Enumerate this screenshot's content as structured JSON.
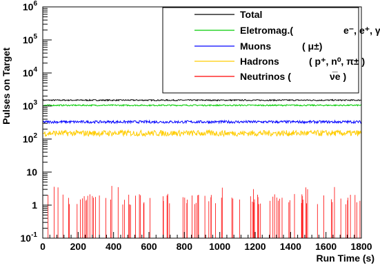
{
  "chart_data": {
    "type": "line",
    "xlabel": "Run Time (s)",
    "ylabel": "Pulses on Target",
    "xlim": [
      0,
      1800
    ],
    "ylim": [
      0.1,
      1000000
    ],
    "yscale": "log",
    "x_ticks": [
      0,
      200,
      400,
      600,
      800,
      1000,
      1200,
      1400,
      1600,
      1800
    ],
    "y_ticks": [
      {
        "value": 0.1,
        "base": "10",
        "exp": "-1"
      },
      {
        "value": 1,
        "base": "1",
        "exp": ""
      },
      {
        "value": 10,
        "base": "10",
        "exp": ""
      },
      {
        "value": 100,
        "base": "10",
        "exp": "2"
      },
      {
        "value": 1000,
        "base": "10",
        "exp": "3"
      },
      {
        "value": 10000,
        "base": "10",
        "exp": "4"
      },
      {
        "value": 100000,
        "base": "10",
        "exp": "5"
      },
      {
        "value": 1000000,
        "base": "10",
        "exp": "6"
      }
    ],
    "legend_position": "top-right",
    "series": [
      {
        "key": "total",
        "color": "#000000",
        "level": 1500,
        "noise": 0.02,
        "legend": {
          "name": "Total",
          "detail": ""
        }
      },
      {
        "key": "em",
        "color": "#00cc00",
        "level": 1050,
        "noise": 0.02,
        "legend": {
          "name": "Eletromag.(",
          "detail": "e⁻, e⁺, γ)"
        }
      },
      {
        "key": "muons",
        "color": "#0000ff",
        "level": 330,
        "noise": 0.04,
        "legend": {
          "name": "Muons",
          "detail": "( μ±)"
        }
      },
      {
        "key": "hadrons",
        "color": "#ffcc00",
        "level": 150,
        "noise": 0.09,
        "legend": {
          "name": "Hadrons",
          "detail": "( p⁺, n⁰, π± )"
        }
      },
      {
        "key": "neutrinos",
        "color": "#ff0000",
        "level": 2,
        "noise": 0,
        "spikes": "sparse-1-to-2-with-occasional-3-to-4",
        "legend": {
          "name": "Neutrinos (",
          "detail": "ν̅e )"
        }
      }
    ]
  }
}
